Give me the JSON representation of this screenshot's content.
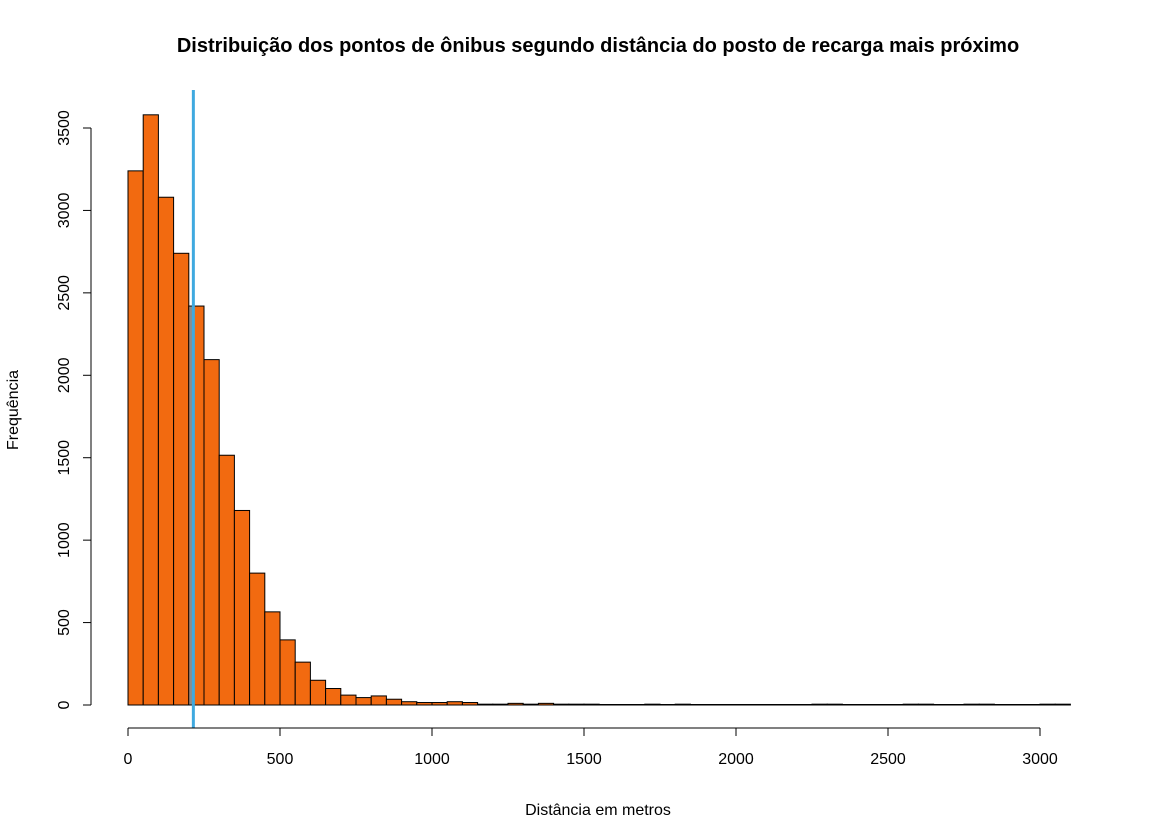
{
  "chart_data": {
    "type": "bar",
    "title": "Distribuição dos pontos de ônibus segundo distância do posto de recarga mais próximo",
    "xlabel": "Distância em metros",
    "ylabel": "Frequência",
    "bin_width": 50,
    "x_start": 0,
    "values": [
      3240,
      3580,
      3080,
      2740,
      2420,
      2095,
      1515,
      1180,
      800,
      565,
      395,
      260,
      150,
      100,
      60,
      45,
      55,
      35,
      20,
      15,
      15,
      20,
      15,
      5,
      5,
      10,
      5,
      10,
      5,
      5,
      5,
      3,
      3,
      3,
      5,
      3,
      5,
      3,
      3,
      3,
      3,
      3,
      3,
      3,
      3,
      5,
      5,
      3,
      3,
      3,
      3,
      5,
      5,
      3,
      3,
      5,
      5,
      3,
      3,
      3,
      5,
      5
    ],
    "xlim": [
      0,
      3100
    ],
    "ylim": [
      0,
      3700
    ],
    "x_ticks": [
      0,
      500,
      1000,
      1500,
      2000,
      2500,
      3000
    ],
    "y_ticks": [
      0,
      500,
      1000,
      1500,
      2000,
      2500,
      3000,
      3500
    ],
    "reference_line_x": 215,
    "colors": {
      "bar_fill": "#F26A10",
      "bar_highlight_fill": "#8C8C8C",
      "reference_line": "#3FA9DF"
    },
    "grid": false,
    "legend": "none"
  }
}
